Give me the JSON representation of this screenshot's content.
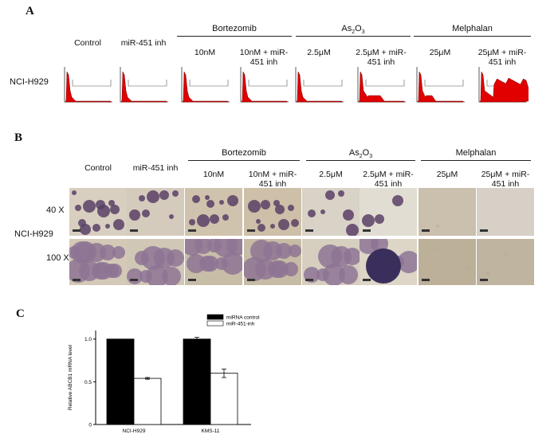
{
  "panelA": {
    "letter": "A",
    "cell_line": "NCI-H929",
    "columns": [
      "Control",
      "miR-451 inh",
      "10nM",
      "10nM + miR-\n451 inh",
      "2.5μM",
      "2.5μM + miR-\n451 inh",
      "25μM",
      "25μM + miR-\n451 inh"
    ],
    "groups": [
      "Bortezomib",
      "As2O3",
      "Melphalan"
    ]
  },
  "panelB": {
    "letter": "B",
    "cell_line": "NCI-H929",
    "rows": [
      "40 X",
      "100 X"
    ],
    "columns": [
      "Control",
      "miR-451 inh",
      "10nM",
      "10nM + miR-\n451 inh",
      "2.5μM",
      "2.5μM + miR-\n451 inh",
      "25μM",
      "25μM + miR-\n451 inh"
    ],
    "groups": [
      "Bortezomib",
      "As2O3",
      "Melphalan"
    ]
  },
  "panelC": {
    "letter": "C",
    "chart_data": {
      "type": "bar",
      "categories": [
        "NCI-H929",
        "KMS-11"
      ],
      "series": [
        {
          "name": "miRNA control",
          "values": [
            1.0,
            1.0
          ],
          "errors": [
            0.0,
            0.02
          ],
          "color": "#000000"
        },
        {
          "name": "miR-451-inh",
          "values": [
            0.54,
            0.6
          ],
          "errors": [
            0.01,
            0.05
          ],
          "color": "#ffffff"
        }
      ],
      "ylabel": "Relative ABCB1 mRNA level",
      "ylim": [
        0,
        1.1
      ],
      "yticks": [
        "0",
        "0.5",
        "1.0"
      ],
      "legend_position": "top-right"
    }
  }
}
